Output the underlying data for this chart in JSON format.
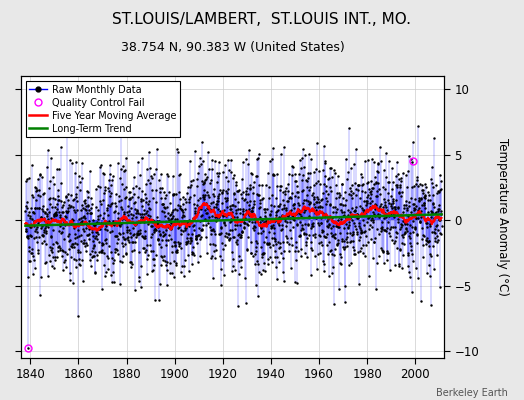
{
  "title": "ST.LOUIS/LAMBERT,  ST.LOUIS INT., MO.",
  "subtitle": "38.754 N, 90.383 W (United States)",
  "ylabel": "Temperature Anomaly (°C)",
  "credit": "Berkeley Earth",
  "xlim": [
    1836,
    2012
  ],
  "ylim": [
    -10.5,
    11
  ],
  "yticks": [
    -10,
    -5,
    0,
    5,
    10
  ],
  "xticks": [
    1840,
    1860,
    1880,
    1900,
    1920,
    1940,
    1960,
    1980,
    2000
  ],
  "bg_color": "#e8e8e8",
  "plot_bg_color": "#ffffff",
  "title_fontsize": 11,
  "subtitle_fontsize": 9,
  "start_year": 1838,
  "end_year": 2010,
  "seed": 42,
  "noise_std": 2.2,
  "ma_window": 60,
  "trend_slope": 0.005,
  "qc1_idx": 14,
  "qc1_val": -9.8,
  "qc2_year": 1999.0,
  "qc2_val": 4.5
}
